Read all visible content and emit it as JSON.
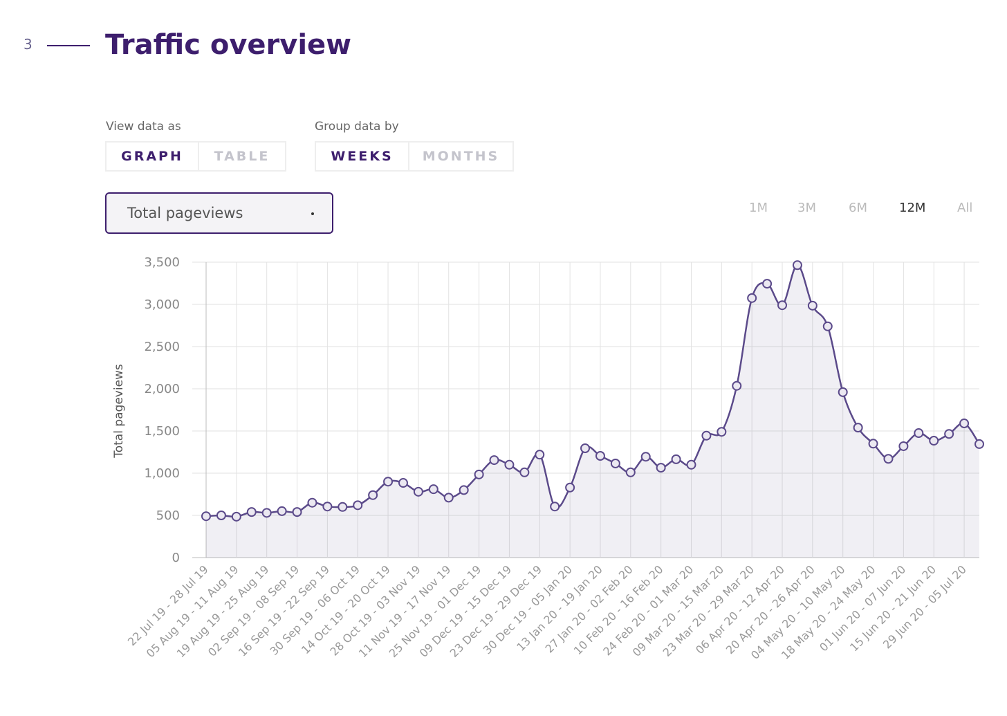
{
  "header": {
    "step": "3",
    "title": "Traffic overview"
  },
  "controls": {
    "view": {
      "label": "View data as",
      "options": [
        "GRAPH",
        "TABLE"
      ]
    },
    "group": {
      "label": "Group data by",
      "options": [
        "WEEKS",
        "MONTHS"
      ]
    },
    "metric": "Total pageviews",
    "ranges": [
      "1M",
      "3M",
      "6M",
      "12M",
      "All"
    ]
  },
  "chart_data": {
    "type": "line",
    "y_label": "Total pageviews",
    "categories": [
      "22 Jul 19 - 28 Jul 19",
      null,
      "05 Aug 19 - 11 Aug 19",
      null,
      "19 Aug 19 - 25 Aug 19",
      null,
      "02 Sep 19 - 08 Sep 19",
      null,
      "16 Sep 19 - 22 Sep 19",
      null,
      "30 Sep 19 - 06 Oct 19",
      null,
      "14 Oct 19 - 20 Oct 19",
      null,
      "28 Oct 19 - 03 Nov 19",
      null,
      "11 Nov 19 - 17 Nov 19",
      null,
      "25 Nov 19 - 01 Dec 19",
      null,
      "09 Dec 19 - 15 Dec 19",
      null,
      "23 Dec 19 - 29 Dec 19",
      null,
      "30 Dec 19 - 05 Jan 20",
      null,
      "13 Jan 20 - 19 Jan 20",
      null,
      "27 Jan 20 - 02 Feb 20",
      null,
      "10 Feb 20 - 16 Feb 20",
      null,
      "24 Feb 20 - 01 Mar 20",
      null,
      "09 Mar 20 - 15 Mar 20",
      null,
      "23 Mar 20 - 29 Mar 20",
      null,
      "06 Apr 20 - 12 Apr 20",
      null,
      "20 Apr 20 - 26 Apr 20",
      null,
      "04 May 20 - 10 May 20",
      null,
      "18 May 20 - 24 May 20",
      null,
      "01 Jun 20 - 07 Jun 20",
      null,
      "15 Jun 20 - 21 Jun 20",
      null,
      "29 Jun 20 - 05 Jul 20",
      null
    ],
    "series": [
      {
        "name": "Total pageviews",
        "color": "#5b4a8a",
        "values": [
          490,
          500,
          485,
          540,
          530,
          550,
          540,
          650,
          605,
          600,
          620,
          740,
          900,
          885,
          780,
          810,
          710,
          800,
          985,
          1155,
          1100,
          1010,
          1220,
          605,
          830,
          1295,
          1205,
          1115,
          1010,
          1195,
          1065,
          1165,
          1100,
          1445,
          1490,
          2035,
          3075,
          3245,
          2990,
          3465,
          2985,
          2740,
          1960,
          1540,
          1350,
          1170,
          1320,
          1475,
          1385,
          1465,
          1590,
          1345
        ]
      }
    ],
    "ylim": [
      0,
      3500
    ],
    "yticks": [
      0,
      500,
      {
        "value": 1000,
        "label": "1,000"
      },
      {
        "value": 1500,
        "label": "1,500"
      },
      {
        "value": 2000,
        "label": "2,000"
      },
      {
        "value": 2500,
        "label": "2,500"
      },
      {
        "value": 3000,
        "label": "3,000"
      },
      {
        "value": 3500,
        "label": "3,500"
      }
    ],
    "grid": true
  }
}
